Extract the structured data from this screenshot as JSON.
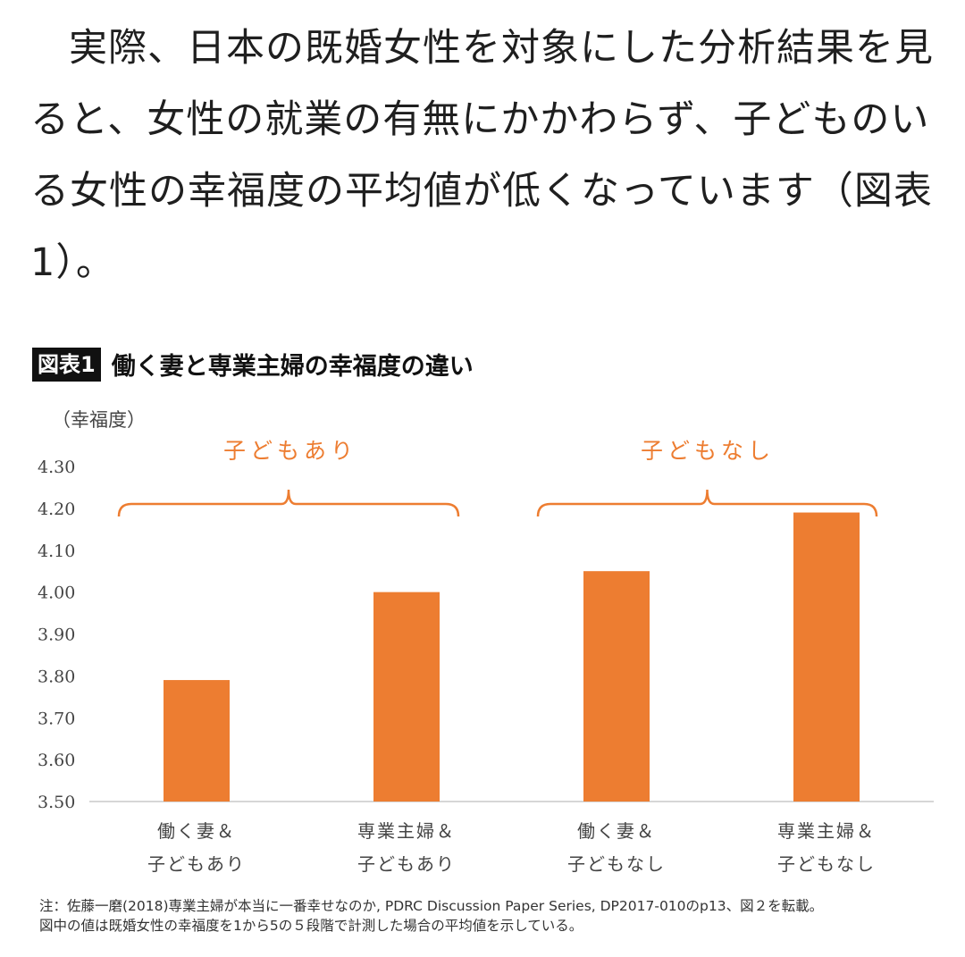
{
  "paragraph": "実際、日本の既婚女性を対象にした分析結果を見ると、女性の就業の有無にかかわらず、子どものいる女性の幸福度の平均値が低くなっています（図表1）。",
  "figure": {
    "tag": "図表1",
    "title": "働く妻と専業主婦の幸福度の違い",
    "note_lines": [
      "注：佐藤一磨(2018)専業主婦が本当に一番幸せなのか, PDRC Discussion Paper Series, DP2017-010のp13、図２を転載。",
      "図中の値は既婚女性の幸福度を1から5の５段階で計測した場合の平均値を示している。"
    ]
  },
  "colors": {
    "bar": "#ed7d31",
    "group_label": "#ed7d31",
    "axis_text": "#444444"
  },
  "chart_data": {
    "type": "bar",
    "ylabel": "（幸福度）",
    "ylim": [
      3.5,
      4.3
    ],
    "yticks": [
      "4.30",
      "4.20",
      "4.10",
      "4.00",
      "3.90",
      "3.80",
      "3.70",
      "3.60",
      "3.50"
    ],
    "groups": [
      "子どもあり",
      "子どもなし"
    ],
    "categories": [
      [
        "働く妻＆",
        "子どもあり"
      ],
      [
        "専業主婦＆",
        "子どもあり"
      ],
      [
        "働く妻＆",
        "子どもなし"
      ],
      [
        "専業主婦＆",
        "子どもなし"
      ]
    ],
    "values": [
      3.79,
      4.0,
      4.05,
      4.19
    ]
  }
}
